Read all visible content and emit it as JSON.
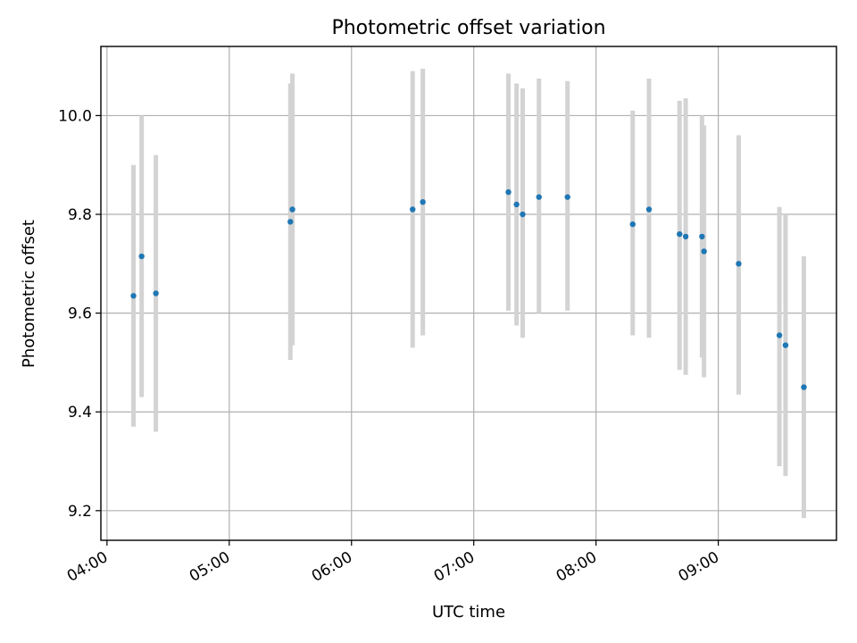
{
  "chart_data": {
    "type": "scatter",
    "title": "Photometric offset variation",
    "xlabel": "UTC time",
    "ylabel": "Photometric offset",
    "x_ticks": [
      "04:00",
      "05:00",
      "06:00",
      "07:00",
      "08:00",
      "09:00"
    ],
    "y_ticks": [
      "9.2",
      "9.4",
      "9.6",
      "9.8",
      "10.0"
    ],
    "xlim": [
      "03:57",
      "09:58"
    ],
    "ylim": [
      9.14,
      10.14
    ],
    "grid": true,
    "marker_color": "#1f77b4",
    "errorbar_color": "#d3d3d3",
    "points": [
      {
        "x": "04:13",
        "y": 9.635,
        "low": 9.37,
        "high": 9.9
      },
      {
        "x": "04:17",
        "y": 9.715,
        "low": 9.43,
        "high": 10.0
      },
      {
        "x": "04:24",
        "y": 9.64,
        "low": 9.36,
        "high": 9.92
      },
      {
        "x": "05:30",
        "y": 9.785,
        "low": 9.505,
        "high": 10.065
      },
      {
        "x": "05:31",
        "y": 9.81,
        "low": 9.535,
        "high": 10.085
      },
      {
        "x": "06:30",
        "y": 9.81,
        "low": 9.53,
        "high": 10.09
      },
      {
        "x": "06:35",
        "y": 9.825,
        "low": 9.555,
        "high": 10.095
      },
      {
        "x": "07:17",
        "y": 9.845,
        "low": 9.605,
        "high": 10.085
      },
      {
        "x": "07:21",
        "y": 9.82,
        "low": 9.575,
        "high": 10.065
      },
      {
        "x": "07:24",
        "y": 9.8,
        "low": 9.55,
        "high": 10.055
      },
      {
        "x": "07:32",
        "y": 9.835,
        "low": 9.6,
        "high": 10.075
      },
      {
        "x": "07:46",
        "y": 9.835,
        "low": 9.605,
        "high": 10.07
      },
      {
        "x": "08:18",
        "y": 9.78,
        "low": 9.555,
        "high": 10.01
      },
      {
        "x": "08:26",
        "y": 9.81,
        "low": 9.55,
        "high": 10.075
      },
      {
        "x": "08:41",
        "y": 9.76,
        "low": 9.485,
        "high": 10.03
      },
      {
        "x": "08:44",
        "y": 9.755,
        "low": 9.475,
        "high": 10.035
      },
      {
        "x": "08:52",
        "y": 9.755,
        "low": 9.51,
        "high": 10.0
      },
      {
        "x": "08:53",
        "y": 9.725,
        "low": 9.47,
        "high": 9.98
      },
      {
        "x": "09:10",
        "y": 9.7,
        "low": 9.435,
        "high": 9.96
      },
      {
        "x": "09:30",
        "y": 9.555,
        "low": 9.29,
        "high": 9.815
      },
      {
        "x": "09:33",
        "y": 9.535,
        "low": 9.27,
        "high": 9.8
      },
      {
        "x": "09:42",
        "y": 9.45,
        "low": 9.185,
        "high": 9.715
      }
    ]
  }
}
